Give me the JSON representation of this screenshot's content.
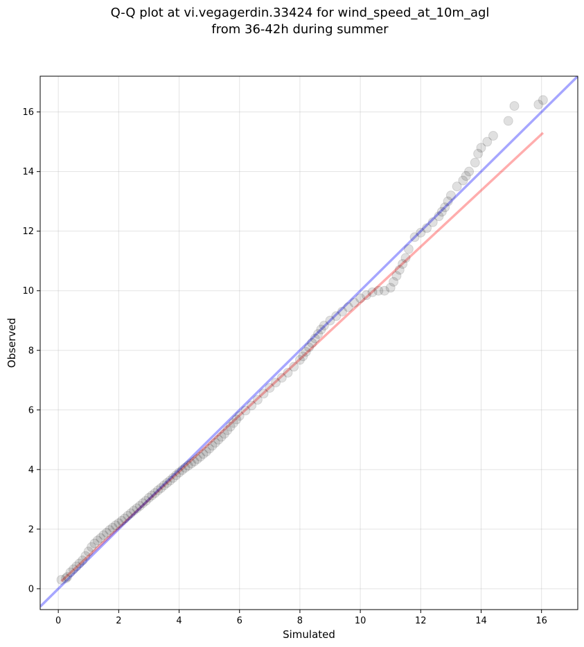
{
  "chart_data": {
    "type": "scatter",
    "title_lines": [
      "Q-Q plot at vi.vegagerdin.33424 for wind_speed_at_10m_agl",
      "from 36-42h during summer"
    ],
    "xlabel": "Simulated",
    "ylabel": "Observed",
    "xlim": [
      -0.6,
      17.2
    ],
    "ylim": [
      -0.7,
      17.2
    ],
    "xticks": [
      0,
      2,
      4,
      6,
      8,
      10,
      12,
      14,
      16
    ],
    "yticks": [
      0,
      2,
      4,
      6,
      8,
      10,
      12,
      14,
      16
    ],
    "grid": true,
    "points_color": "#000000",
    "reference_line": {
      "name": "1:1",
      "color": "#0000ff",
      "x": [
        -0.6,
        17.2
      ],
      "y": [
        -0.6,
        17.2
      ]
    },
    "fit_line": {
      "name": "fit",
      "color": "#ff0000",
      "x": [
        0.1,
        16.05
      ],
      "y": [
        0.25,
        15.3
      ]
    },
    "series": [
      {
        "x": [
          0.1,
          0.25,
          0.3,
          0.4,
          0.5,
          0.6,
          0.7,
          0.8,
          0.9,
          1.0,
          1.1,
          1.2,
          1.3,
          1.4,
          1.5,
          1.6,
          1.7,
          1.8,
          1.9,
          2.0,
          2.1,
          2.2,
          2.3,
          2.4,
          2.5,
          2.6,
          2.7,
          2.8,
          2.9,
          3.0,
          3.1,
          3.2,
          3.3,
          3.4,
          3.5,
          3.6,
          3.7,
          3.8,
          3.9,
          4.0,
          4.1,
          4.2,
          4.3,
          4.4,
          4.5,
          4.6,
          4.7,
          4.8,
          4.9,
          5.0,
          5.1,
          5.2,
          5.3,
          5.4,
          5.5,
          5.6,
          5.7,
          5.8,
          5.9,
          6.0,
          6.2,
          6.4,
          6.6,
          6.8,
          7.0,
          7.2,
          7.4,
          7.6,
          7.8,
          8.0,
          8.1,
          8.2,
          8.3,
          8.4,
          8.5,
          8.6,
          8.7,
          8.8,
          9.0,
          9.2,
          9.4,
          9.6,
          9.8,
          10.0,
          10.2,
          10.4,
          10.6,
          10.8,
          11.0,
          11.1,
          11.2,
          11.3,
          11.4,
          11.5,
          11.6,
          11.8,
          12.0,
          12.2,
          12.4,
          12.6,
          12.7,
          12.8,
          12.9,
          13.0,
          13.2,
          13.4,
          13.5,
          13.6,
          13.8,
          13.9,
          14.0,
          14.2,
          14.4,
          14.9,
          15.1,
          15.9,
          16.05
        ],
        "y": [
          0.3,
          0.35,
          0.4,
          0.55,
          0.65,
          0.75,
          0.85,
          0.95,
          1.1,
          1.25,
          1.4,
          1.52,
          1.62,
          1.7,
          1.8,
          1.88,
          1.97,
          2.05,
          2.13,
          2.2,
          2.28,
          2.36,
          2.45,
          2.53,
          2.62,
          2.7,
          2.78,
          2.87,
          2.95,
          3.05,
          3.13,
          3.21,
          3.3,
          3.38,
          3.47,
          3.55,
          3.63,
          3.72,
          3.81,
          3.9,
          3.98,
          4.06,
          4.13,
          4.2,
          4.27,
          4.35,
          4.43,
          4.52,
          4.6,
          4.7,
          4.8,
          4.9,
          5.0,
          5.1,
          5.2,
          5.32,
          5.44,
          5.56,
          5.68,
          5.8,
          5.98,
          6.15,
          6.34,
          6.55,
          6.74,
          6.92,
          7.08,
          7.25,
          7.45,
          7.68,
          7.8,
          7.95,
          8.1,
          8.25,
          8.4,
          8.55,
          8.7,
          8.83,
          9.0,
          9.15,
          9.3,
          9.45,
          9.6,
          9.75,
          9.85,
          9.95,
          10.0,
          10.0,
          10.1,
          10.3,
          10.5,
          10.7,
          10.9,
          11.1,
          11.4,
          11.8,
          11.95,
          12.1,
          12.3,
          12.5,
          12.65,
          12.8,
          13.0,
          13.2,
          13.5,
          13.7,
          13.85,
          14.0,
          14.3,
          14.6,
          14.8,
          15.0,
          15.2,
          15.7,
          16.2,
          16.25,
          16.4
        ]
      }
    ]
  }
}
